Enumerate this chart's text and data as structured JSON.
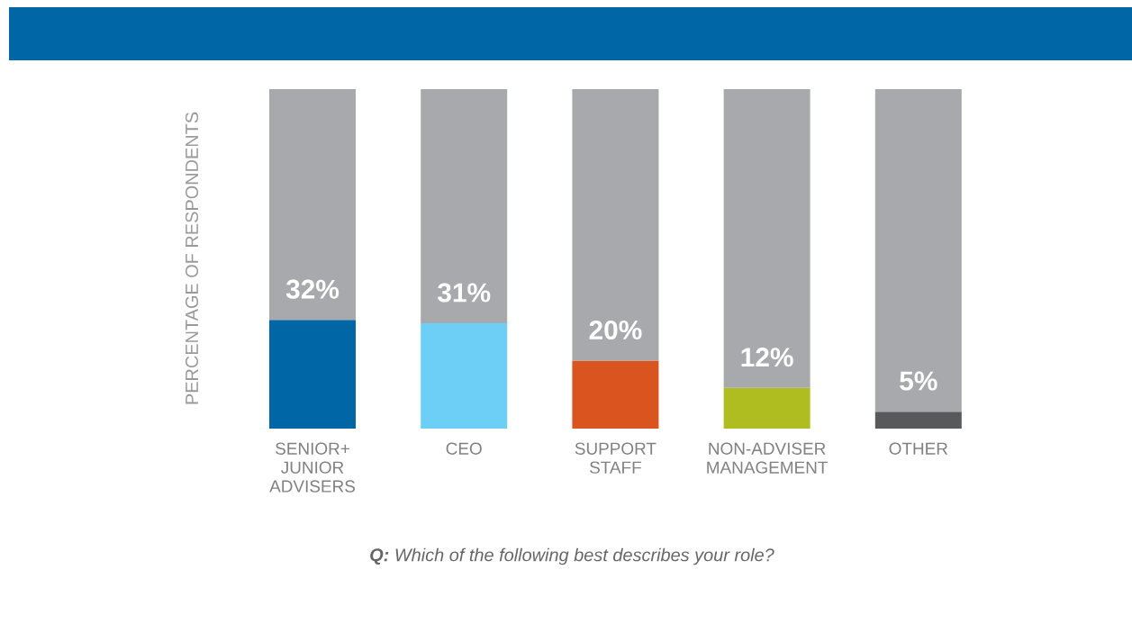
{
  "chart_data": {
    "type": "bar",
    "stacked": true,
    "ylabel": "PERCENTAGE OF RESPONDENTS",
    "categories": [
      "SENIOR+ JUNIOR ADVISERS",
      "CEO",
      "SUPPORT STAFF",
      "NON-ADVISER MANAGEMENT",
      "OTHER"
    ],
    "series": [
      {
        "colors": [
          "#0066a6",
          "#6dcff6",
          "#d9541e",
          "#afbd21",
          "#58595b"
        ],
        "values": [
          32,
          31,
          20,
          12,
          5
        ],
        "value_labels": [
          "32%",
          "31%",
          "20%",
          "12%",
          "5%"
        ]
      },
      {
        "color": "#a7a9ac",
        "values": [
          68,
          69,
          80,
          88,
          95
        ]
      }
    ],
    "ylim": [
      0,
      100
    ],
    "tick_labels": "x",
    "legend": false,
    "annotations": [
      "**Q:** Which of the following best describes your role?"
    ]
  }
}
